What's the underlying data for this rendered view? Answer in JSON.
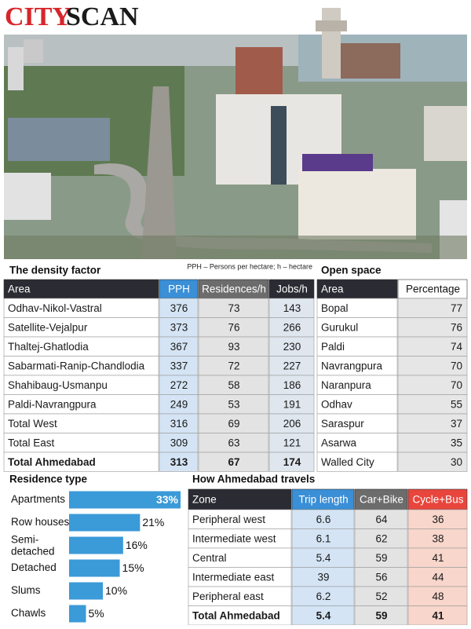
{
  "header": {
    "title_red": "CITY",
    "title_black": "SCAN"
  },
  "density": {
    "title": "The density factor",
    "note": "PPH – Persons per hectare; h – hectare",
    "columns": [
      "Area",
      "PPH",
      "Residences/h",
      "Jobs/h"
    ],
    "rows": [
      [
        "Odhav-Nikol-Vastral",
        376,
        73,
        143
      ],
      [
        "Satellite-Vejalpur",
        373,
        76,
        266
      ],
      [
        "Thaltej-Ghatlodia",
        367,
        93,
        230
      ],
      [
        "Sabarmati-Ranip-Chandlodia",
        337,
        72,
        227
      ],
      [
        "Shahibaug-Usmanpu",
        272,
        58,
        186
      ],
      [
        "Paldi-Navrangpura",
        249,
        53,
        191
      ],
      [
        "Total West",
        316,
        69,
        206
      ],
      [
        "Total East",
        309,
        63,
        121
      ],
      [
        "Total Ahmedabad",
        313,
        67,
        174
      ]
    ]
  },
  "open_space": {
    "title": "Open space",
    "columns": [
      "Area",
      "Percentage"
    ],
    "rows": [
      [
        "Bopal",
        77
      ],
      [
        "Gurukul",
        76
      ],
      [
        "Paldi",
        74
      ],
      [
        "Navrangpura",
        70
      ],
      [
        "Naranpura",
        70
      ],
      [
        "Odhav",
        55
      ],
      [
        "Saraspur",
        37
      ],
      [
        "Asarwa",
        35
      ],
      [
        "Walled City",
        30
      ]
    ]
  },
  "residence_type": {
    "type": "bar",
    "title": "Residence type",
    "categories": [
      "Apartments",
      "Row houses",
      "Semi-detached",
      "Detached",
      "Slums",
      "Chawls"
    ],
    "values": [
      33,
      21,
      16,
      15,
      10,
      5
    ],
    "value_labels": [
      "33%",
      "21%",
      "16%",
      "15%",
      "10%",
      "5%"
    ],
    "color": "#3b9ad8"
  },
  "travels": {
    "title": "How Ahmedabad travels",
    "columns": [
      "Zone",
      "Trip length",
      "Car+Bike",
      "Cycle+Bus"
    ],
    "rows": [
      [
        "Peripheral west",
        6.6,
        64,
        36
      ],
      [
        "Intermediate west",
        6.1,
        62,
        38
      ],
      [
        "Central",
        5.4,
        59,
        41
      ],
      [
        "Intermediate east",
        39,
        56,
        44
      ],
      [
        "Peripheral east",
        6.2,
        52,
        48
      ],
      [
        "Total Ahmedabad",
        5.4,
        59,
        41
      ]
    ]
  }
}
